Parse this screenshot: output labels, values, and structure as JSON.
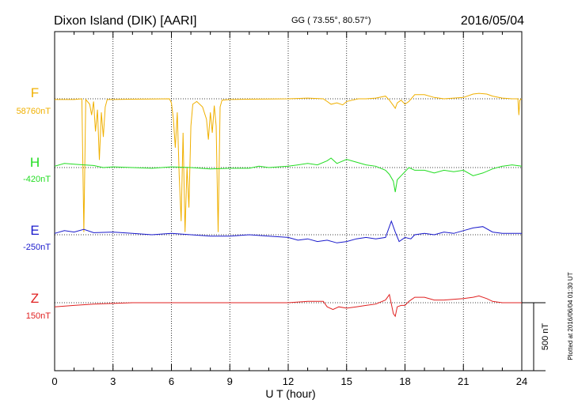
{
  "header": {
    "station": "Dixon Island (DIK)  [AARI]",
    "coords": "GG ( 73.55°,  80.57°)",
    "date": "2016/05/04"
  },
  "footer_note": "Plotted at 2016/06/04 01:30 UT",
  "scale_bar_label": "500 nT",
  "chart_data": {
    "type": "line",
    "title": "Dixon Island (DIK)  [AARI]",
    "xlabel": "U T (hour)",
    "xlim": [
      0,
      24
    ],
    "x_ticks": [
      0,
      3,
      6,
      9,
      12,
      15,
      18,
      21,
      24
    ],
    "x_tick_labels": [
      "0",
      "3",
      "6",
      "9",
      "12",
      "15",
      "18",
      "21",
      "24"
    ],
    "grid": "dotted vertical lines every 3 hours and dotted baseline per trace",
    "scale_nT": 500,
    "series": [
      {
        "name": "F",
        "baseline_label": "58760nT",
        "color": "#f0b000",
        "x": [
          0,
          1,
          1.4,
          1.5,
          1.6,
          1.8,
          1.9,
          2.0,
          2.1,
          2.2,
          2.3,
          2.4,
          2.5,
          2.6,
          2.7,
          3,
          4,
          5,
          5.9,
          6.0,
          6.1,
          6.2,
          6.3,
          6.4,
          6.5,
          6.6,
          6.7,
          6.8,
          6.9,
          7.0,
          7.1,
          7.3,
          7.6,
          7.8,
          7.9,
          8.0,
          8.1,
          8.2,
          8.3,
          8.4,
          8.5,
          8.6,
          9,
          10,
          11,
          12,
          13,
          13.8,
          14.0,
          14.2,
          14.5,
          14.8,
          15.0,
          15.3,
          15.6,
          16,
          16.5,
          17.0,
          17.2,
          17.4,
          17.5,
          17.6,
          17.8,
          18.0,
          18.2,
          18.5,
          19,
          19.5,
          20,
          21,
          21.5,
          21.8,
          22.2,
          22.5,
          23,
          23.5,
          23.8,
          23.85,
          23.9,
          24
        ],
        "values": [
          -5,
          -5,
          0,
          -980,
          -5,
          -40,
          -120,
          -20,
          -240,
          -80,
          -450,
          -100,
          -280,
          -60,
          -5,
          -5,
          -3,
          -2,
          0,
          -30,
          -150,
          -360,
          -100,
          -560,
          -900,
          -250,
          -980,
          -500,
          -800,
          -200,
          -40,
          -20,
          -60,
          -150,
          -300,
          -100,
          -250,
          -50,
          -200,
          -980,
          -60,
          -10,
          -5,
          -3,
          -2,
          0,
          5,
          0,
          -20,
          -40,
          -30,
          -45,
          -20,
          -10,
          0,
          0,
          5,
          20,
          -10,
          -50,
          -70,
          -30,
          -10,
          -40,
          -20,
          30,
          30,
          10,
          0,
          10,
          35,
          40,
          35,
          20,
          5,
          0,
          0,
          -120,
          -10,
          0
        ]
      },
      {
        "name": "H",
        "baseline_label": "-420nT",
        "color": "#22dd22",
        "x": [
          0,
          0.5,
          1,
          1.5,
          2,
          2.5,
          3,
          4,
          5,
          6,
          7,
          8,
          9,
          10,
          10.5,
          11,
          12,
          12.5,
          13,
          13.5,
          14,
          14.2,
          14.5,
          15,
          15.5,
          16,
          16.5,
          17,
          17.2,
          17.4,
          17.5,
          17.6,
          17.8,
          18,
          18.2,
          18.5,
          19,
          19.5,
          20,
          20.5,
          21,
          21.5,
          22,
          22.5,
          23,
          23.5,
          24
        ],
        "values": [
          10,
          30,
          25,
          20,
          15,
          0,
          5,
          0,
          -5,
          5,
          0,
          -10,
          -5,
          -5,
          10,
          0,
          10,
          20,
          30,
          20,
          50,
          70,
          30,
          60,
          40,
          20,
          10,
          -20,
          -50,
          -100,
          -180,
          -90,
          -60,
          -30,
          0,
          -20,
          -20,
          -40,
          -20,
          -30,
          -20,
          -60,
          -40,
          -10,
          10,
          20,
          10
        ]
      },
      {
        "name": "E",
        "baseline_label": "-250nT",
        "color": "#1a1acc",
        "x": [
          0,
          0.5,
          1,
          1.5,
          2,
          3,
          4,
          5,
          6,
          7,
          8,
          9,
          10,
          11,
          12,
          12.5,
          13,
          13.5,
          14,
          14.5,
          15,
          15.5,
          16,
          16.5,
          17,
          17.2,
          17.3,
          17.5,
          17.7,
          18,
          18.3,
          18.5,
          19,
          19.5,
          20,
          20.5,
          21,
          21.5,
          22,
          22.5,
          23,
          24
        ],
        "values": [
          10,
          30,
          20,
          40,
          15,
          20,
          10,
          0,
          10,
          0,
          -10,
          -10,
          0,
          -10,
          -20,
          -40,
          -30,
          -50,
          -40,
          -60,
          -50,
          -30,
          -20,
          -30,
          -20,
          60,
          100,
          20,
          -50,
          -20,
          -30,
          0,
          10,
          0,
          20,
          10,
          30,
          50,
          60,
          20,
          10,
          10
        ]
      },
      {
        "name": "Z",
        "baseline_label": "150nT",
        "color": "#e02020",
        "x": [
          0,
          1,
          2,
          3,
          4,
          5,
          6,
          7,
          8,
          9,
          10,
          11,
          12,
          13,
          13.8,
          14.0,
          14.3,
          14.6,
          15.0,
          15.5,
          16,
          16.5,
          17.0,
          17.2,
          17.4,
          17.5,
          17.6,
          17.8,
          18,
          18.2,
          18.5,
          19,
          19.5,
          20,
          21,
          21.5,
          21.8,
          22.2,
          22.5,
          23,
          24
        ],
        "values": [
          -30,
          -20,
          -10,
          -5,
          0,
          0,
          0,
          0,
          0,
          0,
          0,
          0,
          0,
          10,
          10,
          -30,
          -50,
          -30,
          -40,
          -30,
          -20,
          -10,
          20,
          60,
          -80,
          -100,
          -30,
          -20,
          -20,
          10,
          40,
          40,
          20,
          20,
          30,
          40,
          50,
          30,
          10,
          0,
          0
        ]
      }
    ]
  }
}
